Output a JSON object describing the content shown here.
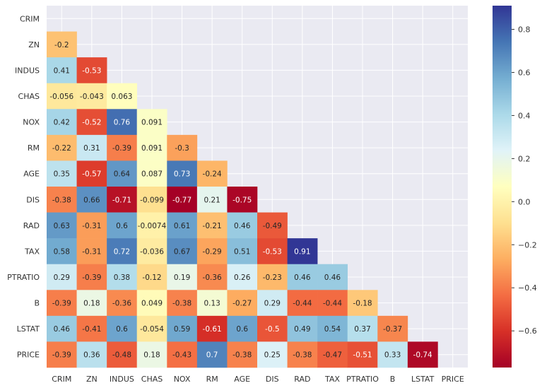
{
  "chart_data": {
    "type": "heatmap",
    "title": "",
    "xlabel": "",
    "ylabel": "",
    "colormap": "RdYlBu",
    "mask": "upper triangle including diagonal",
    "variables": [
      "CRIM",
      "ZN",
      "INDUS",
      "CHAS",
      "NOX",
      "RM",
      "AGE",
      "DIS",
      "RAD",
      "TAX",
      "PTRATIO",
      "B",
      "LSTAT",
      "PRICE"
    ],
    "cells": [
      {
        "row": "ZN",
        "col": "CRIM",
        "value": -0.2,
        "label": "-0.2"
      },
      {
        "row": "INDUS",
        "col": "CRIM",
        "value": 0.41,
        "label": "0.41"
      },
      {
        "row": "INDUS",
        "col": "ZN",
        "value": -0.53,
        "label": "-0.53"
      },
      {
        "row": "CHAS",
        "col": "CRIM",
        "value": -0.056,
        "label": "-0.056"
      },
      {
        "row": "CHAS",
        "col": "ZN",
        "value": -0.043,
        "label": "-0.043"
      },
      {
        "row": "CHAS",
        "col": "INDUS",
        "value": 0.063,
        "label": "0.063"
      },
      {
        "row": "NOX",
        "col": "CRIM",
        "value": 0.42,
        "label": "0.42"
      },
      {
        "row": "NOX",
        "col": "ZN",
        "value": -0.52,
        "label": "-0.52"
      },
      {
        "row": "NOX",
        "col": "INDUS",
        "value": 0.76,
        "label": "0.76"
      },
      {
        "row": "NOX",
        "col": "CHAS",
        "value": 0.091,
        "label": "0.091"
      },
      {
        "row": "RM",
        "col": "CRIM",
        "value": -0.22,
        "label": "-0.22"
      },
      {
        "row": "RM",
        "col": "ZN",
        "value": 0.31,
        "label": "0.31"
      },
      {
        "row": "RM",
        "col": "INDUS",
        "value": -0.39,
        "label": "-0.39"
      },
      {
        "row": "RM",
        "col": "CHAS",
        "value": 0.091,
        "label": "0.091"
      },
      {
        "row": "RM",
        "col": "NOX",
        "value": -0.3,
        "label": "-0.3"
      },
      {
        "row": "AGE",
        "col": "CRIM",
        "value": 0.35,
        "label": "0.35"
      },
      {
        "row": "AGE",
        "col": "ZN",
        "value": -0.57,
        "label": "-0.57"
      },
      {
        "row": "AGE",
        "col": "INDUS",
        "value": 0.64,
        "label": "0.64"
      },
      {
        "row": "AGE",
        "col": "CHAS",
        "value": 0.087,
        "label": "0.087"
      },
      {
        "row": "AGE",
        "col": "NOX",
        "value": 0.73,
        "label": "0.73"
      },
      {
        "row": "AGE",
        "col": "RM",
        "value": -0.24,
        "label": "-0.24"
      },
      {
        "row": "DIS",
        "col": "CRIM",
        "value": -0.38,
        "label": "-0.38"
      },
      {
        "row": "DIS",
        "col": "ZN",
        "value": 0.66,
        "label": "0.66"
      },
      {
        "row": "DIS",
        "col": "INDUS",
        "value": -0.71,
        "label": "-0.71"
      },
      {
        "row": "DIS",
        "col": "CHAS",
        "value": -0.099,
        "label": "-0.099"
      },
      {
        "row": "DIS",
        "col": "NOX",
        "value": -0.77,
        "label": "-0.77"
      },
      {
        "row": "DIS",
        "col": "RM",
        "value": 0.21,
        "label": "0.21"
      },
      {
        "row": "DIS",
        "col": "AGE",
        "value": -0.75,
        "label": "-0.75"
      },
      {
        "row": "RAD",
        "col": "CRIM",
        "value": 0.63,
        "label": "0.63"
      },
      {
        "row": "RAD",
        "col": "ZN",
        "value": -0.31,
        "label": "-0.31"
      },
      {
        "row": "RAD",
        "col": "INDUS",
        "value": 0.6,
        "label": "0.6"
      },
      {
        "row": "RAD",
        "col": "CHAS",
        "value": -0.0074,
        "label": "-0.0074"
      },
      {
        "row": "RAD",
        "col": "NOX",
        "value": 0.61,
        "label": "0.61"
      },
      {
        "row": "RAD",
        "col": "RM",
        "value": -0.21,
        "label": "-0.21"
      },
      {
        "row": "RAD",
        "col": "AGE",
        "value": 0.46,
        "label": "0.46"
      },
      {
        "row": "RAD",
        "col": "DIS",
        "value": -0.49,
        "label": "-0.49"
      },
      {
        "row": "TAX",
        "col": "CRIM",
        "value": 0.58,
        "label": "0.58"
      },
      {
        "row": "TAX",
        "col": "ZN",
        "value": -0.31,
        "label": "-0.31"
      },
      {
        "row": "TAX",
        "col": "INDUS",
        "value": 0.72,
        "label": "0.72"
      },
      {
        "row": "TAX",
        "col": "CHAS",
        "value": -0.036,
        "label": "-0.036"
      },
      {
        "row": "TAX",
        "col": "NOX",
        "value": 0.67,
        "label": "0.67"
      },
      {
        "row": "TAX",
        "col": "RM",
        "value": -0.29,
        "label": "-0.29"
      },
      {
        "row": "TAX",
        "col": "AGE",
        "value": 0.51,
        "label": "0.51"
      },
      {
        "row": "TAX",
        "col": "DIS",
        "value": -0.53,
        "label": "-0.53"
      },
      {
        "row": "TAX",
        "col": "RAD",
        "value": 0.91,
        "label": "0.91"
      },
      {
        "row": "PTRATIO",
        "col": "CRIM",
        "value": 0.29,
        "label": "0.29"
      },
      {
        "row": "PTRATIO",
        "col": "ZN",
        "value": -0.39,
        "label": "-0.39"
      },
      {
        "row": "PTRATIO",
        "col": "INDUS",
        "value": 0.38,
        "label": "0.38"
      },
      {
        "row": "PTRATIO",
        "col": "CHAS",
        "value": -0.12,
        "label": "-0.12"
      },
      {
        "row": "PTRATIO",
        "col": "NOX",
        "value": 0.19,
        "label": "0.19"
      },
      {
        "row": "PTRATIO",
        "col": "RM",
        "value": -0.36,
        "label": "-0.36"
      },
      {
        "row": "PTRATIO",
        "col": "AGE",
        "value": 0.26,
        "label": "0.26"
      },
      {
        "row": "PTRATIO",
        "col": "DIS",
        "value": -0.23,
        "label": "-0.23"
      },
      {
        "row": "PTRATIO",
        "col": "RAD",
        "value": 0.46,
        "label": "0.46"
      },
      {
        "row": "PTRATIO",
        "col": "TAX",
        "value": 0.46,
        "label": "0.46"
      },
      {
        "row": "B",
        "col": "CRIM",
        "value": -0.39,
        "label": "-0.39"
      },
      {
        "row": "B",
        "col": "ZN",
        "value": 0.18,
        "label": "0.18"
      },
      {
        "row": "B",
        "col": "INDUS",
        "value": -0.36,
        "label": "-0.36"
      },
      {
        "row": "B",
        "col": "CHAS",
        "value": 0.049,
        "label": "0.049"
      },
      {
        "row": "B",
        "col": "NOX",
        "value": -0.38,
        "label": "-0.38"
      },
      {
        "row": "B",
        "col": "RM",
        "value": 0.13,
        "label": "0.13"
      },
      {
        "row": "B",
        "col": "AGE",
        "value": -0.27,
        "label": "-0.27"
      },
      {
        "row": "B",
        "col": "DIS",
        "value": 0.29,
        "label": "0.29"
      },
      {
        "row": "B",
        "col": "RAD",
        "value": -0.44,
        "label": "-0.44"
      },
      {
        "row": "B",
        "col": "TAX",
        "value": -0.44,
        "label": "-0.44"
      },
      {
        "row": "B",
        "col": "PTRATIO",
        "value": -0.18,
        "label": "-0.18"
      },
      {
        "row": "LSTAT",
        "col": "CRIM",
        "value": 0.46,
        "label": "0.46"
      },
      {
        "row": "LSTAT",
        "col": "ZN",
        "value": -0.41,
        "label": "-0.41"
      },
      {
        "row": "LSTAT",
        "col": "INDUS",
        "value": 0.6,
        "label": "0.6"
      },
      {
        "row": "LSTAT",
        "col": "CHAS",
        "value": -0.054,
        "label": "-0.054"
      },
      {
        "row": "LSTAT",
        "col": "NOX",
        "value": 0.59,
        "label": "0.59"
      },
      {
        "row": "LSTAT",
        "col": "RM",
        "value": -0.61,
        "label": "-0.61"
      },
      {
        "row": "LSTAT",
        "col": "AGE",
        "value": 0.6,
        "label": "0.6"
      },
      {
        "row": "LSTAT",
        "col": "DIS",
        "value": -0.5,
        "label": "-0.5"
      },
      {
        "row": "LSTAT",
        "col": "RAD",
        "value": 0.49,
        "label": "0.49"
      },
      {
        "row": "LSTAT",
        "col": "TAX",
        "value": 0.54,
        "label": "0.54"
      },
      {
        "row": "LSTAT",
        "col": "PTRATIO",
        "value": 0.37,
        "label": "0.37"
      },
      {
        "row": "LSTAT",
        "col": "B",
        "value": -0.37,
        "label": "-0.37"
      },
      {
        "row": "PRICE",
        "col": "CRIM",
        "value": -0.39,
        "label": "-0.39"
      },
      {
        "row": "PRICE",
        "col": "ZN",
        "value": 0.36,
        "label": "0.36"
      },
      {
        "row": "PRICE",
        "col": "INDUS",
        "value": -0.48,
        "label": "-0.48"
      },
      {
        "row": "PRICE",
        "col": "CHAS",
        "value": 0.18,
        "label": "0.18"
      },
      {
        "row": "PRICE",
        "col": "NOX",
        "value": -0.43,
        "label": "-0.43"
      },
      {
        "row": "PRICE",
        "col": "RM",
        "value": 0.7,
        "label": "0.7"
      },
      {
        "row": "PRICE",
        "col": "AGE",
        "value": -0.38,
        "label": "-0.38"
      },
      {
        "row": "PRICE",
        "col": "DIS",
        "value": 0.25,
        "label": "0.25"
      },
      {
        "row": "PRICE",
        "col": "RAD",
        "value": -0.38,
        "label": "-0.38"
      },
      {
        "row": "PRICE",
        "col": "TAX",
        "value": -0.47,
        "label": "-0.47"
      },
      {
        "row": "PRICE",
        "col": "PTRATIO",
        "value": -0.51,
        "label": "-0.51"
      },
      {
        "row": "PRICE",
        "col": "B",
        "value": 0.33,
        "label": "0.33"
      },
      {
        "row": "PRICE",
        "col": "LSTAT",
        "value": -0.74,
        "label": "-0.74"
      }
    ],
    "colorbar": {
      "vmin": -0.77,
      "vmax": 0.91,
      "ticks": [
        {
          "value": -0.6,
          "label": "−0.6"
        },
        {
          "value": -0.4,
          "label": "−0.4"
        },
        {
          "value": -0.2,
          "label": "−0.2"
        },
        {
          "value": 0.0,
          "label": "0.0"
        },
        {
          "value": 0.2,
          "label": "0.2"
        },
        {
          "value": 0.4,
          "label": "0.4"
        },
        {
          "value": 0.6,
          "label": "0.6"
        },
        {
          "value": 0.8,
          "label": "0.8"
        }
      ]
    },
    "grid": true,
    "background_color": "#eaeaf2"
  }
}
